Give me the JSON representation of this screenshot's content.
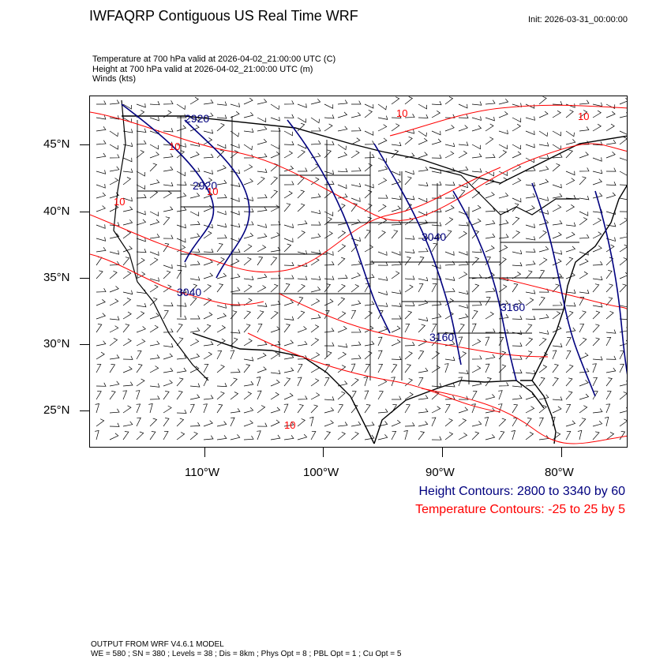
{
  "header": {
    "title": "IWFAQRP Contiguous US Real Time WRF",
    "init": "Init: 2026-03-31_00:00:00"
  },
  "fields": {
    "temperature": "Temperature at 700 hPa valid at 2026-04-02_21:00:00 UTC   (C)",
    "height": "Height at 700 hPa valid at 2026-04-02_21:00:00 UTC   (m)",
    "winds": "Winds   (kts)"
  },
  "map": {
    "lat_labels": [
      "45°N",
      "40°N",
      "35°N",
      "30°N",
      "25°N"
    ],
    "lon_labels": [
      "110°W",
      "100°W",
      "90°W",
      "80°W"
    ],
    "contour_labels": {
      "height": [
        "2920",
        "2920",
        "3040",
        "3040",
        "3160",
        "3160"
      ],
      "temperature": [
        "10",
        "10",
        "10",
        "10",
        "10",
        "10"
      ]
    },
    "colors": {
      "height": "#00007f",
      "temperature": "#ff0000",
      "borders": "#000000",
      "barbs": "#000000"
    }
  },
  "legend": {
    "height": "Height Contours: 2800 to 3340 by 60",
    "temperature": "Temperature Contours: -25 to 25 by 5"
  },
  "footer": {
    "line1": "OUTPUT FROM WRF V4.6.1 MODEL",
    "line2": "WE = 580 ; SN = 380 ; Levels = 38 ; Dis = 8km ; Phys Opt = 8 ; PBL Opt = 1 ; Cu Opt = 5"
  }
}
